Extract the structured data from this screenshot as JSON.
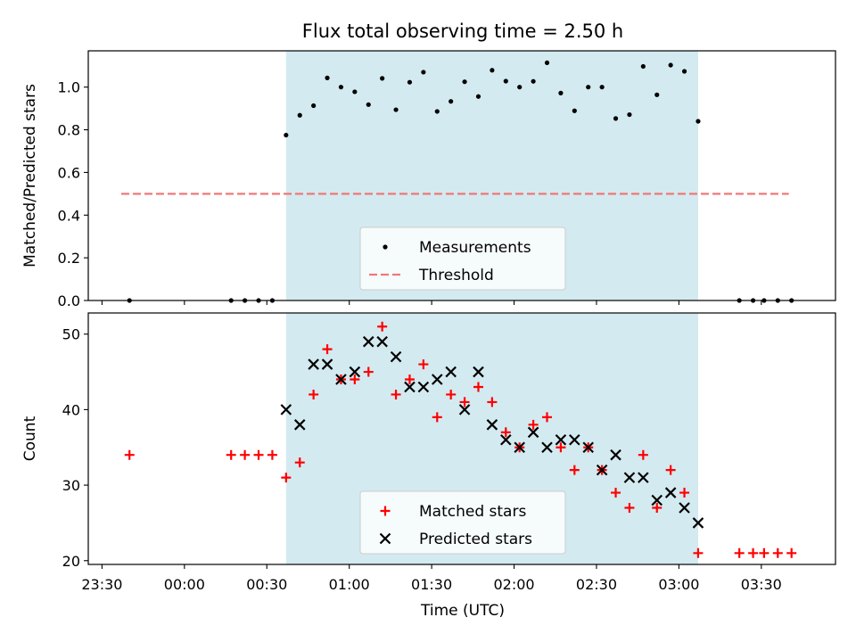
{
  "title": "Flux total observing time = 2.50 h",
  "chart_data": [
    {
      "type": "scatter",
      "ylabel": "Matched/Predicted stars",
      "ylim": [
        0,
        1.17
      ],
      "xlim": [
        "23:25",
        "03:57"
      ],
      "yticks": [
        "0.0",
        "0.2",
        "0.4",
        "0.6",
        "0.8",
        "1.0"
      ],
      "ytick_values": [
        0,
        0.2,
        0.4,
        0.6,
        0.8,
        1.0
      ],
      "shaded_region": {
        "start": "00:37",
        "end": "03:07",
        "color": "#d3eaf0"
      },
      "legend": {
        "placement": "lower center",
        "entries": [
          "Measurements",
          "Threshold"
        ]
      },
      "series": [
        {
          "name": "Measurements",
          "marker": "dot",
          "color": "#000000",
          "x": [
            "23:40",
            "00:17",
            "00:22",
            "00:27",
            "00:32",
            "00:37",
            "00:42",
            "00:47",
            "00:52",
            "00:57",
            "01:02",
            "01:07",
            "01:12",
            "01:17",
            "01:22",
            "01:27",
            "01:32",
            "01:37",
            "01:42",
            "01:47",
            "01:52",
            "01:57",
            "02:02",
            "02:07",
            "02:12",
            "02:17",
            "02:22",
            "02:27",
            "02:32",
            "02:37",
            "02:42",
            "02:47",
            "02:52",
            "02:57",
            "03:02",
            "03:07",
            "03:22",
            "03:27",
            "03:31",
            "03:36",
            "03:41"
          ],
          "y": [
            0,
            0,
            0,
            0,
            0,
            0.775,
            0.868,
            0.913,
            1.043,
            1.0,
            0.978,
            0.918,
            1.041,
            0.894,
            1.023,
            1.07,
            0.886,
            0.933,
            1.025,
            0.956,
            1.079,
            1.028,
            1.0,
            1.027,
            1.114,
            0.972,
            0.889,
            1.0,
            1.0,
            0.853,
            0.871,
            1.097,
            0.964,
            1.103,
            1.074,
            0.84,
            0,
            0,
            0,
            0,
            0
          ]
        },
        {
          "name": "Threshold",
          "style": "dashed",
          "color": "#f07878",
          "x": [
            "23:37",
            "03:40"
          ],
          "y": [
            0.5,
            0.5
          ]
        }
      ]
    },
    {
      "type": "scatter",
      "xlabel": "Time (UTC)",
      "ylabel": "Count",
      "ylim": [
        19.5,
        52.8
      ],
      "xlim": [
        "23:25",
        "03:57"
      ],
      "yticks": [
        "20",
        "30",
        "40",
        "50"
      ],
      "ytick_values": [
        20,
        30,
        40,
        50
      ],
      "xticks": [
        "23:30",
        "00:00",
        "00:30",
        "01:00",
        "01:30",
        "02:00",
        "02:30",
        "03:00",
        "03:30"
      ],
      "shaded_region": {
        "start": "00:37",
        "end": "03:07",
        "color": "#d3eaf0"
      },
      "legend": {
        "placement": "lower center",
        "entries": [
          "Matched stars",
          "Predicted stars"
        ]
      },
      "series": [
        {
          "name": "Matched stars",
          "marker": "plus",
          "color": "#ff0000",
          "x": [
            "23:40",
            "00:17",
            "00:22",
            "00:27",
            "00:32",
            "00:37",
            "00:42",
            "00:47",
            "00:52",
            "00:57",
            "01:02",
            "01:07",
            "01:12",
            "01:17",
            "01:22",
            "01:27",
            "01:32",
            "01:37",
            "01:42",
            "01:47",
            "01:52",
            "01:57",
            "02:02",
            "02:07",
            "02:12",
            "02:17",
            "02:22",
            "02:27",
            "02:32",
            "02:37",
            "02:42",
            "02:47",
            "02:52",
            "02:57",
            "03:02",
            "03:07",
            "03:22",
            "03:27",
            "03:31",
            "03:36",
            "03:41"
          ],
          "y": [
            34,
            34,
            34,
            34,
            34,
            31,
            33,
            42,
            48,
            44,
            44,
            45,
            51,
            42,
            44,
            46,
            39,
            42,
            41,
            43,
            41,
            37,
            35,
            38,
            39,
            35,
            32,
            35,
            32,
            29,
            27,
            34,
            27,
            32,
            29,
            21,
            21,
            21,
            21,
            21,
            21
          ]
        },
        {
          "name": "Predicted stars",
          "marker": "x",
          "color": "#000000",
          "x": [
            "00:37",
            "00:42",
            "00:47",
            "00:52",
            "00:57",
            "01:02",
            "01:07",
            "01:12",
            "01:17",
            "01:22",
            "01:27",
            "01:32",
            "01:37",
            "01:42",
            "01:47",
            "01:52",
            "01:57",
            "02:02",
            "02:07",
            "02:12",
            "02:17",
            "02:22",
            "02:27",
            "02:32",
            "02:37",
            "02:42",
            "02:47",
            "02:52",
            "02:57",
            "03:02",
            "03:07"
          ],
          "y": [
            40,
            38,
            46,
            46,
            44,
            45,
            49,
            49,
            47,
            43,
            43,
            44,
            45,
            40,
            45,
            38,
            36,
            35,
            37,
            35,
            36,
            36,
            35,
            32,
            34,
            31,
            31,
            28,
            29,
            27,
            25
          ]
        }
      ]
    }
  ]
}
